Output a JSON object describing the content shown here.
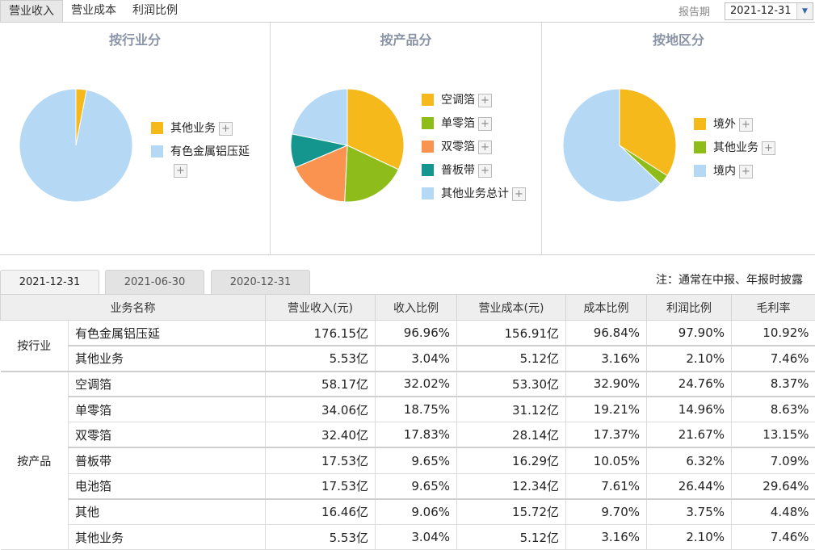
{
  "top_tabs": [
    "营业收入",
    "营业成本",
    "利润比例"
  ],
  "period": {
    "label": "报告期",
    "selected": "2021-12-31"
  },
  "panels": [
    {
      "title": "按行业分",
      "legend": [
        {
          "label": "其他业务",
          "color": "#f5b91b"
        },
        {
          "label": "有色金属铝压延",
          "color": "#b5d8f5"
        }
      ]
    },
    {
      "title": "按产品分",
      "legend": [
        {
          "label": "空调箔",
          "color": "#f5b91b"
        },
        {
          "label": "单零箔",
          "color": "#8ebc1a"
        },
        {
          "label": "双零箔",
          "color": "#fb9350"
        },
        {
          "label": "普板带",
          "color": "#14968f"
        },
        {
          "label": "其他业务总计",
          "color": "#b5d8f5"
        }
      ]
    },
    {
      "title": "按地区分",
      "legend": [
        {
          "label": "境外",
          "color": "#f5b91b"
        },
        {
          "label": "其他业务",
          "color": "#8ebc1a"
        },
        {
          "label": "境内",
          "color": "#b5d8f5"
        }
      ]
    }
  ],
  "chart_data": [
    {
      "type": "pie",
      "title": "按行业分",
      "labels": [
        "其他业务",
        "有色金属铝压延"
      ],
      "values": [
        3.04,
        96.96
      ]
    },
    {
      "type": "pie",
      "title": "按产品分",
      "labels": [
        "空调箔",
        "单零箔",
        "双零箔",
        "普板带",
        "其他业务总计"
      ],
      "values": [
        32.02,
        18.75,
        17.83,
        9.65,
        21.75
      ]
    },
    {
      "type": "pie",
      "title": "按地区分",
      "labels": [
        "境外",
        "其他业务",
        "境内"
      ],
      "values": [
        34.0,
        3.0,
        63.0
      ]
    }
  ],
  "period_tabs": [
    "2021-12-31",
    "2021-06-30",
    "2020-12-31"
  ],
  "note": "注：通常在中报、年报时披露",
  "table": {
    "headers": [
      "业务名称",
      "营业收入(元)",
      "收入比例",
      "营业成本(元)",
      "成本比例",
      "利润比例",
      "毛利率"
    ],
    "groups": [
      {
        "name": "按行业",
        "rows": [
          [
            "有色金属铝压延",
            "176.15亿",
            "96.96%",
            "156.91亿",
            "96.84%",
            "97.90%",
            "10.92%"
          ],
          [
            "其他业务",
            "5.53亿",
            "3.04%",
            "5.12亿",
            "3.16%",
            "2.10%",
            "7.46%"
          ]
        ]
      },
      {
        "name": "按产品",
        "rows": [
          [
            "空调箔",
            "58.17亿",
            "32.02%",
            "53.30亿",
            "32.90%",
            "24.76%",
            "8.37%"
          ],
          [
            "单零箔",
            "34.06亿",
            "18.75%",
            "31.12亿",
            "19.21%",
            "14.96%",
            "8.63%"
          ],
          [
            "双零箔",
            "32.40亿",
            "17.83%",
            "28.14亿",
            "17.37%",
            "21.67%",
            "13.15%"
          ],
          [
            "普板带",
            "17.53亿",
            "9.65%",
            "16.29亿",
            "10.05%",
            "6.32%",
            "7.09%"
          ],
          [
            "电池箔",
            "17.53亿",
            "9.65%",
            "12.34亿",
            "7.61%",
            "26.44%",
            "29.64%"
          ],
          [
            "其他",
            "16.46亿",
            "9.06%",
            "15.72亿",
            "9.70%",
            "3.75%",
            "4.48%"
          ],
          [
            "其他业务",
            "5.53亿",
            "3.04%",
            "5.12亿",
            "3.16%",
            "2.10%",
            "7.46%"
          ]
        ]
      }
    ]
  }
}
